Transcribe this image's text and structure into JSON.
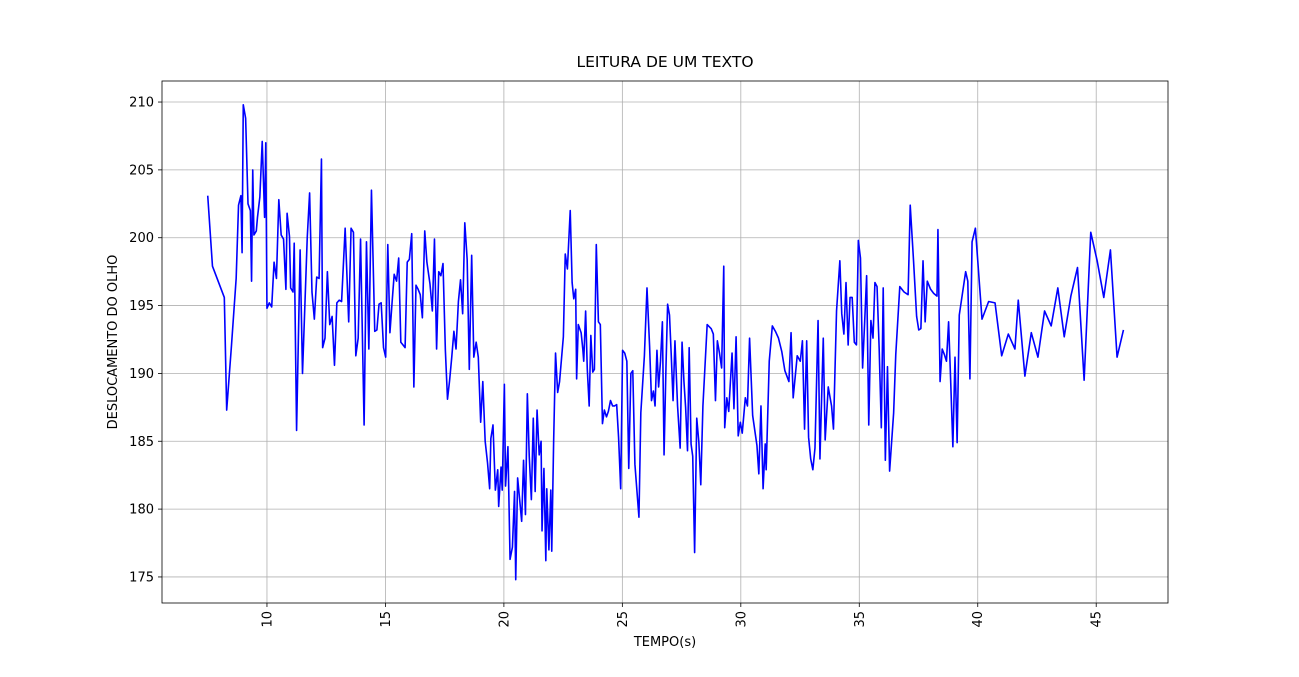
{
  "chart_data": {
    "type": "line",
    "title": "LEITURA DE UM TEXTO",
    "x_label": "TEMPO(s)",
    "y_label": "DESLOCAMENTO DO OLHO",
    "grid": true,
    "xlim": [
      5.57,
      48.03
    ],
    "xticks": [
      10,
      15,
      20,
      25,
      30,
      35,
      40,
      45
    ],
    "ylim": [
      173.08,
      211.55
    ],
    "yticks": [
      175,
      180,
      185,
      190,
      195,
      200,
      205,
      210
    ],
    "x": [
      7.5,
      7.7,
      8.2,
      8.3,
      8.5,
      8.7,
      8.8,
      8.9,
      8.95,
      9.0,
      9.1,
      9.2,
      9.3,
      9.35,
      9.4,
      9.45,
      9.55,
      9.6,
      9.7,
      9.8,
      9.9,
      9.95,
      10.0,
      10.1,
      10.2,
      10.3,
      10.4,
      10.5,
      10.6,
      10.7,
      10.8,
      10.85,
      10.95,
      11.0,
      11.1,
      11.15,
      11.25,
      11.4,
      11.5,
      11.7,
      11.8,
      11.9,
      12.0,
      12.1,
      12.2,
      12.3,
      12.35,
      12.45,
      12.55,
      12.65,
      12.75,
      12.85,
      12.95,
      13.05,
      13.15,
      13.3,
      13.45,
      13.55,
      13.65,
      13.75,
      13.85,
      13.95,
      14.1,
      14.2,
      14.3,
      14.41,
      14.55,
      14.64,
      14.73,
      14.82,
      14.92,
      15.01,
      15.1,
      15.19,
      15.28,
      15.37,
      15.47,
      15.56,
      15.65,
      15.74,
      15.83,
      15.92,
      16.01,
      16.11,
      16.2,
      16.29,
      16.38,
      16.47,
      16.56,
      16.66,
      16.75,
      16.88,
      16.98,
      17.07,
      17.16,
      17.25,
      17.34,
      17.43,
      17.53,
      17.62,
      17.71,
      17.8,
      17.89,
      17.98,
      18.08,
      18.17,
      18.26,
      18.35,
      18.45,
      18.54,
      18.64,
      18.73,
      18.83,
      18.92,
      19.02,
      19.11,
      19.21,
      19.31,
      19.4,
      19.45,
      19.54,
      19.64,
      19.74,
      19.78,
      19.88,
      19.93,
      20.02,
      20.07,
      20.17,
      20.26,
      20.36,
      20.45,
      20.5,
      20.58,
      20.66,
      20.75,
      20.83,
      20.91,
      20.99,
      21.07,
      21.16,
      21.24,
      21.32,
      21.4,
      21.49,
      21.57,
      21.61,
      21.69,
      21.77,
      21.81,
      21.9,
      21.98,
      22.02,
      22.1,
      22.18,
      22.27,
      22.35,
      22.51,
      22.59,
      22.68,
      22.8,
      22.88,
      22.95,
      23.03,
      23.07,
      23.14,
      23.26,
      23.33,
      23.37,
      23.45,
      23.52,
      23.6,
      23.67,
      23.75,
      23.82,
      23.9,
      23.99,
      24.07,
      24.16,
      24.24,
      24.33,
      24.41,
      24.5,
      24.59,
      24.67,
      24.76,
      24.84,
      24.93,
      25.01,
      25.1,
      25.19,
      25.27,
      25.36,
      25.44,
      25.53,
      25.7,
      25.78,
      25.93,
      26.04,
      26.15,
      26.23,
      26.31,
      26.38,
      26.46,
      26.53,
      26.61,
      26.69,
      26.76,
      26.84,
      26.91,
      26.99,
      27.06,
      27.14,
      27.22,
      27.33,
      27.44,
      27.52,
      27.6,
      27.67,
      27.75,
      27.82,
      27.9,
      27.97,
      28.05,
      28.14,
      28.23,
      28.31,
      28.4,
      28.58,
      28.75,
      28.84,
      28.93,
      29.01,
      29.1,
      29.19,
      29.28,
      29.32,
      29.41,
      29.49,
      29.63,
      29.71,
      29.8,
      29.89,
      29.98,
      30.06,
      30.19,
      30.28,
      30.37,
      30.5,
      30.68,
      30.76,
      30.85,
      30.94,
      31.03,
      31.07,
      31.2,
      31.33,
      31.46,
      31.59,
      31.73,
      31.86,
      32.03,
      32.12,
      32.21,
      32.38,
      32.51,
      32.6,
      32.69,
      32.78,
      32.86,
      32.95,
      33.04,
      33.13,
      33.26,
      33.34,
      33.48,
      33.56,
      33.69,
      33.83,
      33.91,
      34.04,
      34.18,
      34.26,
      34.35,
      34.44,
      34.53,
      34.61,
      34.7,
      34.79,
      34.88,
      34.96,
      35.05,
      35.14,
      35.23,
      35.31,
      35.4,
      35.49,
      35.58,
      35.66,
      35.75,
      35.84,
      35.93,
      36.01,
      36.1,
      36.19,
      36.28,
      36.45,
      36.54,
      36.71,
      36.89,
      37.06,
      37.15,
      37.29,
      37.42,
      37.51,
      37.6,
      37.69,
      37.78,
      37.87,
      38.01,
      38.14,
      38.28,
      38.32,
      38.41,
      38.5,
      38.59,
      38.68,
      38.77,
      38.86,
      38.95,
      39.04,
      39.13,
      39.22,
      39.49,
      39.58,
      39.67,
      39.76,
      39.9,
      40.18,
      40.46,
      40.73,
      41.01,
      41.29,
      41.57,
      41.71,
      41.99,
      42.26,
      42.54,
      42.82,
      43.1,
      43.38,
      43.65,
      43.93,
      44.21,
      44.49,
      44.77,
      45.04,
      45.32,
      45.6,
      45.88,
      46.15
    ],
    "series": [
      {
        "color": "#0000ff",
        "values": [
          203.1,
          197.9,
          195.6,
          187.3,
          192,
          197,
          202.4,
          203.1,
          198.9,
          209.8,
          208.8,
          202.5,
          202,
          196.8,
          205,
          200.2,
          200.5,
          201.5,
          203,
          207.1,
          201.5,
          207,
          194.8,
          195.2,
          194.9,
          198.2,
          197,
          202.8,
          200.2,
          199.9,
          196.2,
          201.8,
          200.1,
          196.3,
          196,
          199.6,
          185.8,
          199.1,
          190,
          200,
          203.3,
          196,
          194,
          197.1,
          197,
          205.8,
          191.9,
          192.6,
          197.5,
          193.6,
          194.2,
          190.6,
          195.2,
          195.4,
          195.3,
          200.7,
          193.8,
          200.7,
          200.4,
          191.3,
          192.6,
          199.9,
          186.2,
          199.7,
          191.8,
          203.5,
          193.1,
          193.2,
          195.1,
          195.2,
          191.9,
          191.2,
          199.5,
          193,
          195.2,
          197.3,
          196.8,
          198.5,
          192.3,
          192.1,
          191.9,
          198.2,
          198.4,
          200.3,
          189,
          196.5,
          196.2,
          195.8,
          194.1,
          200.5,
          198.2,
          196.6,
          194.6,
          199.9,
          191.8,
          197.5,
          197.2,
          198.1,
          191.7,
          188.1,
          189.5,
          191.2,
          193.1,
          191.8,
          195.3,
          196.9,
          194.4,
          201.1,
          198.4,
          190.3,
          198.7,
          191.2,
          192.3,
          191.2,
          186.4,
          189.4,
          185,
          183.4,
          181.5,
          185.2,
          186.2,
          181.4,
          182.9,
          180.2,
          183.1,
          181.4,
          189.2,
          181.7,
          184.6,
          176.3,
          177.2,
          181.3,
          174.8,
          182.3,
          180.8,
          179.1,
          183.6,
          179.6,
          188.5,
          183.9,
          180.7,
          186.7,
          181.3,
          187.3,
          184,
          185,
          178.4,
          183,
          176.2,
          181.5,
          177,
          181.4,
          176.9,
          185,
          191.5,
          188.6,
          189.4,
          192.7,
          198.8,
          197.7,
          202,
          196.7,
          195.5,
          196.2,
          189.6,
          193.6,
          193,
          191.8,
          190.9,
          194.6,
          190.3,
          187.6,
          192.8,
          190.1,
          190.3,
          199.5,
          193.8,
          193.6,
          186.3,
          187.3,
          186.8,
          187.2,
          188,
          187.6,
          187.6,
          187.7,
          185.3,
          181.5,
          191.7,
          191.5,
          190.9,
          183,
          190,
          190.2,
          183.3,
          179.4,
          187.1,
          191.3,
          196.3,
          192,
          188,
          188.7,
          187.6,
          191.7,
          189,
          190.9,
          193.8,
          184,
          190.4,
          195.1,
          194.3,
          191.5,
          188,
          192.4,
          187.6,
          184.5,
          192.3,
          189.4,
          187.5,
          184.3,
          191.9,
          184.8,
          183.9,
          176.8,
          186.7,
          184.9,
          181.8,
          187.6,
          193.6,
          193.3,
          192.9,
          188,
          192.4,
          191.5,
          190.4,
          197.9,
          186,
          188.2,
          187.2,
          191.5,
          187.4,
          192.7,
          185.4,
          186.4,
          185.6,
          188.2,
          187.6,
          192.6,
          186.9,
          184.7,
          182.6,
          187.6,
          181.5,
          184.8,
          182.9,
          190.9,
          193.5,
          193.1,
          192.6,
          191.6,
          190.2,
          189.4,
          193,
          188.2,
          191.3,
          190.9,
          192.4,
          185.9,
          192.4,
          185.3,
          183.7,
          182.9,
          184.5,
          193.9,
          183.7,
          192.6,
          185.1,
          189,
          187.6,
          185.9,
          194.6,
          198.3,
          194.4,
          192.9,
          196.7,
          192.1,
          195.6,
          195.6,
          192.3,
          192.1,
          199.8,
          198.5,
          190.4,
          193.9,
          197.2,
          186.2,
          193.9,
          192.6,
          196.7,
          196.4,
          191.8,
          186,
          196.3,
          183.6,
          190.5,
          182.8,
          187.1,
          191.4,
          196.4,
          196,
          195.8,
          202.4,
          198.3,
          194.2,
          193.2,
          193.3,
          198.3,
          193.8,
          196.8,
          196.2,
          195.9,
          195.7,
          200.6,
          189.4,
          191.8,
          191.4,
          190.9,
          193.8,
          189.3,
          184.6,
          191.2,
          184.9,
          194.3,
          197.5,
          196.8,
          189.6,
          199.7,
          200.7,
          194,
          195.3,
          195.2,
          191.3,
          192.9,
          191.8,
          195.4,
          189.8,
          193,
          191.2,
          194.6,
          193.5,
          196.3,
          192.7,
          195.7,
          197.8,
          189.5,
          200.4,
          198.3,
          195.6,
          199.1,
          191.2,
          193.2
        ]
      }
    ]
  }
}
